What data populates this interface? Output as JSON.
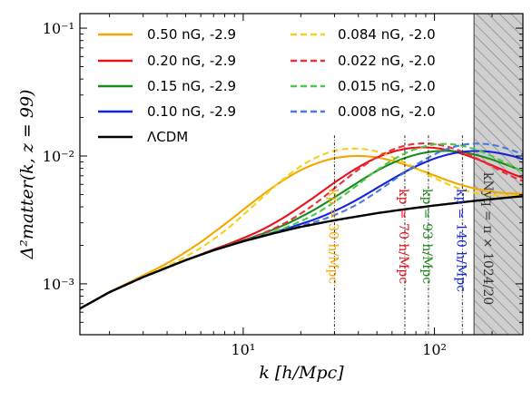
{
  "chart_data": {
    "type": "line",
    "title": "",
    "xlabel": "k [h/Mpc]",
    "ylabel": "Δ²matter(k, z = 99)",
    "xlim": [
      1.4,
      290
    ],
    "ylim": [
      0.0004,
      0.13
    ],
    "xscale": "log",
    "yscale": "log",
    "grid": false,
    "legend_position": "top-left, two columns",
    "x_ticks": [
      {
        "value": 10,
        "label": "10¹"
      },
      {
        "value": 100,
        "label": "10²"
      }
    ],
    "y_ticks": [
      {
        "value": 0.001,
        "label": "10⁻³"
      },
      {
        "value": 0.01,
        "label": "10⁻²"
      },
      {
        "value": 0.1,
        "label": "10⁻¹"
      }
    ],
    "base_curve": {
      "name": "ΛCDM",
      "color": "#000000",
      "x": [
        1.4,
        2,
        3,
        5,
        7,
        10,
        15,
        20,
        30,
        50,
        70,
        100,
        150,
        200,
        290
      ],
      "y": [
        0.00064,
        0.00086,
        0.00113,
        0.00153,
        0.00183,
        0.00215,
        0.00252,
        0.00279,
        0.00314,
        0.00357,
        0.00383,
        0.0041,
        0.0044,
        0.0046,
        0.00485
      ]
    },
    "bump_series": [
      {
        "name": "0.50 nG, -2.9",
        "color": "#f5a700",
        "style": "solid",
        "peak_k": 31,
        "peak_y": 0.0097,
        "width": 0.35
      },
      {
        "name": "0.20 nG, -2.9",
        "color": "#e8111c",
        "style": "solid",
        "peak_k": 74,
        "peak_y": 0.0115,
        "width": 0.33
      },
      {
        "name": "0.15 nG, -2.9",
        "color": "#1a8c1a",
        "style": "solid",
        "peak_k": 96,
        "peak_y": 0.0108,
        "width": 0.33
      },
      {
        "name": "0.10 nG, -2.9",
        "color": "#1424d6",
        "style": "solid",
        "peak_k": 142,
        "peak_y": 0.0108,
        "width": 0.33
      },
      {
        "name": "0.084 nG, -2.0",
        "color": "#f2d31a",
        "style": "dashed",
        "peak_k": 32,
        "peak_y": 0.0112,
        "width": 0.3
      },
      {
        "name": "0.022 nG, -2.0",
        "color": "#e8303e",
        "style": "dashed",
        "peak_k": 78,
        "peak_y": 0.0124,
        "width": 0.29
      },
      {
        "name": "0.015 nG, -2.0",
        "color": "#4cc94c",
        "style": "dashed",
        "peak_k": 100,
        "peak_y": 0.0123,
        "width": 0.29
      },
      {
        "name": "0.008 nG, -2.0",
        "color": "#4a7ae0",
        "style": "dashed",
        "peak_k": 150,
        "peak_y": 0.0124,
        "width": 0.29
      }
    ],
    "vertical_markers": [
      {
        "k": 30,
        "label": "kp ≃ 30 h/Mpc",
        "color": "#f5a700"
      },
      {
        "k": 70,
        "label": "kp ≃ 70 h/Mpc",
        "color": "#e8111c"
      },
      {
        "k": 93,
        "label": "kp ≃ 93 h/Mpc",
        "color": "#1a8c1a"
      },
      {
        "k": 140,
        "label": "kp ≃ 140 h/Mpc",
        "color": "#1424d6"
      }
    ],
    "nyquist": {
      "k": 161,
      "label": "kNyq = π × 1024/20",
      "color": "#333333"
    }
  }
}
